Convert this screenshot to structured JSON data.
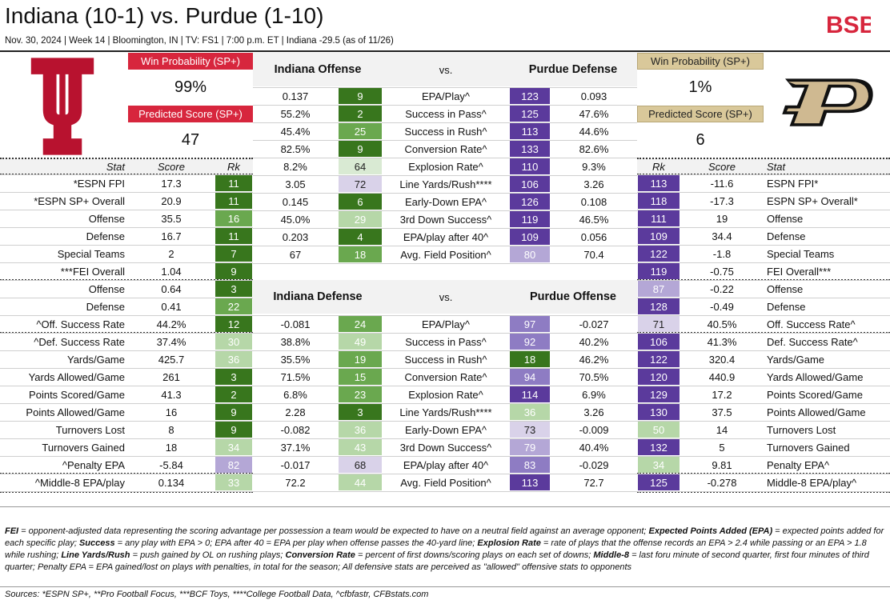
{
  "header": {
    "title": "Indiana (10-1) vs. Purdue (1-10)",
    "subtitle": "Nov. 30, 2024 | Week 14 | Bloomington, IN | TV: FS1 | 7:00 p.m. ET | Indiana -29.5 (as of 11/26)",
    "brand_logo": "BSB"
  },
  "indiana_summary": {
    "win_prob_label": "Win Probability (SP+)",
    "win_prob": "99%",
    "pred_score_label": "Predicted Score (SP+)",
    "pred_score": "47"
  },
  "purdue_summary": {
    "win_prob_label": "Win Probability (SP+)",
    "win_prob": "1%",
    "pred_score_label": "Predicted Score (SP+)",
    "pred_score": "6"
  },
  "headers": {
    "stat": "Stat",
    "score": "Score",
    "rk": "Rk",
    "ind_off": "Indiana Offense",
    "vs1": "vs.",
    "pur_def": "Purdue Defense",
    "ind_def": "Indiana Defense",
    "vs2": "vs.",
    "pur_off": "Purdue Offense"
  },
  "colors": {
    "dark_green": "#38761d",
    "mid_green": "#6aa84f",
    "light_green": "#b6d7a8",
    "pale_green": "#d9ead3",
    "dark_purple": "#5b3a9c",
    "mid_purple": "#8e7cc3",
    "light_purple": "#b4a7d6",
    "pale_purple": "#d9d2e9",
    "ind_red": "#d7263d",
    "pur_gold": "#cfb991"
  },
  "left_rows": [
    {
      "stat": "*ESPN FPI",
      "score": "17.3",
      "rk": "11",
      "tone": "g1"
    },
    {
      "stat": "*ESPN SP+ Overall",
      "score": "20.9",
      "rk": "11",
      "tone": "g1"
    },
    {
      "stat": "Offense",
      "score": "35.5",
      "rk": "16",
      "tone": "g2"
    },
    {
      "stat": "Defense",
      "score": "16.7",
      "rk": "11",
      "tone": "g1"
    },
    {
      "stat": "Special Teams",
      "score": "2",
      "rk": "7",
      "tone": "g1"
    },
    {
      "stat": "***FEI Overall",
      "score": "1.04",
      "rk": "9",
      "tone": "g1"
    },
    {
      "stat": "Offense",
      "score": "0.64",
      "rk": "3",
      "tone": "g1"
    },
    {
      "stat": "Defense",
      "score": "0.41",
      "rk": "22",
      "tone": "g2"
    },
    {
      "stat": "^Off. Success Rate",
      "score": "44.2%",
      "rk": "12",
      "tone": "g1"
    },
    {
      "stat": "^Def. Success Rate",
      "score": "37.4%",
      "rk": "30",
      "tone": "g3"
    },
    {
      "stat": "Yards/Game",
      "score": "425.7",
      "rk": "36",
      "tone": "g3"
    },
    {
      "stat": "Yards Allowed/Game",
      "score": "261",
      "rk": "3",
      "tone": "g1"
    },
    {
      "stat": "Points Scored/Game",
      "score": "41.3",
      "rk": "2",
      "tone": "g1"
    },
    {
      "stat": "Points Allowed/Game",
      "score": "16",
      "rk": "9",
      "tone": "g1"
    },
    {
      "stat": "Turnovers Lost",
      "score": "8",
      "rk": "9",
      "tone": "g1"
    },
    {
      "stat": "Turnovers Gained",
      "score": "18",
      "rk": "34",
      "tone": "g3"
    },
    {
      "stat": "^Penalty EPA",
      "score": "-5.84",
      "rk": "82",
      "tone": "p3"
    },
    {
      "stat": "^Middle-8 EPA/play",
      "score": "0.134",
      "rk": "33",
      "tone": "g3"
    }
  ],
  "right_rows": [
    {
      "rk": "113",
      "score": "-11.6",
      "stat": "ESPN FPI*",
      "tone": "p1"
    },
    {
      "rk": "118",
      "score": "-17.3",
      "stat": "ESPN SP+ Overall*",
      "tone": "p1"
    },
    {
      "rk": "111",
      "score": "19",
      "stat": "Offense",
      "tone": "p1"
    },
    {
      "rk": "109",
      "score": "34.4",
      "stat": "Defense",
      "tone": "p1"
    },
    {
      "rk": "122",
      "score": "-1.8",
      "stat": "Special Teams",
      "tone": "p1"
    },
    {
      "rk": "119",
      "score": "-0.75",
      "stat": "FEI Overall***",
      "tone": "p1"
    },
    {
      "rk": "87",
      "score": "-0.22",
      "stat": "Offense",
      "tone": "p3"
    },
    {
      "rk": "128",
      "score": "-0.49",
      "stat": "Defense",
      "tone": "p1"
    },
    {
      "rk": "71",
      "score": "40.5%",
      "stat": "Off. Success Rate^",
      "tone": "p4"
    },
    {
      "rk": "106",
      "score": "41.3%",
      "stat": "Def. Success Rate^",
      "tone": "p1"
    },
    {
      "rk": "122",
      "score": "320.4",
      "stat": "Yards/Game",
      "tone": "p1"
    },
    {
      "rk": "120",
      "score": "440.9",
      "stat": "Yards Allowed/Game",
      "tone": "p1"
    },
    {
      "rk": "129",
      "score": "17.2",
      "stat": "Points Scored/Game",
      "tone": "p1"
    },
    {
      "rk": "130",
      "score": "37.5",
      "stat": "Points Allowed/Game",
      "tone": "p1"
    },
    {
      "rk": "50",
      "score": "14",
      "stat": "Turnovers Lost",
      "tone": "g3"
    },
    {
      "rk": "132",
      "score": "5",
      "stat": "Turnovers Gained",
      "tone": "p1"
    },
    {
      "rk": "34",
      "score": "9.81",
      "stat": "Penalty EPA^",
      "tone": "g3"
    },
    {
      "rk": "125",
      "score": "-0.278",
      "stat": "Middle-8 EPA/play^",
      "tone": "p1"
    }
  ],
  "matchup1_rows": [
    {
      "a": "0.137",
      "ar": "9",
      "at": "g1",
      "stat": "EPA/Play^",
      "br": "123",
      "bt": "p1",
      "b": "0.093"
    },
    {
      "a": "55.2%",
      "ar": "2",
      "at": "g1",
      "stat": "Success in Pass^",
      "br": "125",
      "bt": "p1",
      "b": "47.6%"
    },
    {
      "a": "45.4%",
      "ar": "25",
      "at": "g2",
      "stat": "Success in Rush^",
      "br": "113",
      "bt": "p1",
      "b": "44.6%"
    },
    {
      "a": "82.5%",
      "ar": "9",
      "at": "g1",
      "stat": "Conversion Rate^",
      "br": "133",
      "bt": "p1",
      "b": "82.6%"
    },
    {
      "a": "8.2%",
      "ar": "64",
      "at": "g4",
      "stat": "Explosion Rate^",
      "br": "110",
      "bt": "p1",
      "b": "9.3%"
    },
    {
      "a": "3.05",
      "ar": "72",
      "at": "p4",
      "stat": "Line Yards/Rush****",
      "br": "106",
      "bt": "p1",
      "b": "3.26"
    },
    {
      "a": "0.145",
      "ar": "6",
      "at": "g1",
      "stat": "Early-Down EPA^",
      "br": "126",
      "bt": "p1",
      "b": "0.108"
    },
    {
      "a": "45.0%",
      "ar": "29",
      "at": "g3",
      "stat": "3rd Down Success^",
      "br": "119",
      "bt": "p1",
      "b": "46.5%"
    },
    {
      "a": "0.203",
      "ar": "4",
      "at": "g1",
      "stat": "EPA/play after 40^",
      "br": "109",
      "bt": "p1",
      "b": "0.056"
    },
    {
      "a": "67",
      "ar": "18",
      "at": "g2",
      "stat": "Avg. Field Position^",
      "br": "80",
      "bt": "p3",
      "b": "70.4"
    }
  ],
  "matchup2_rows": [
    {
      "a": "-0.081",
      "ar": "24",
      "at": "g2",
      "stat": "EPA/Play^",
      "br": "97",
      "bt": "p2",
      "b": "-0.027"
    },
    {
      "a": "38.8%",
      "ar": "49",
      "at": "g3",
      "stat": "Success in Pass^",
      "br": "92",
      "bt": "p2",
      "b": "40.2%"
    },
    {
      "a": "35.5%",
      "ar": "19",
      "at": "g2",
      "stat": "Success in Rush^",
      "br": "18",
      "bt": "g1",
      "b": "46.2%"
    },
    {
      "a": "71.5%",
      "ar": "15",
      "at": "g2",
      "stat": "Conversion Rate^",
      "br": "94",
      "bt": "p2",
      "b": "70.5%"
    },
    {
      "a": "6.8%",
      "ar": "23",
      "at": "g2",
      "stat": "Explosion Rate^",
      "br": "114",
      "bt": "p1",
      "b": "6.9%"
    },
    {
      "a": "2.28",
      "ar": "3",
      "at": "g1",
      "stat": "Line Yards/Rush****",
      "br": "36",
      "bt": "g3",
      "b": "3.26"
    },
    {
      "a": "-0.082",
      "ar": "36",
      "at": "g3",
      "stat": "Early-Down EPA^",
      "br": "73",
      "bt": "p4",
      "b": "-0.009"
    },
    {
      "a": "37.1%",
      "ar": "43",
      "at": "g3",
      "stat": "3rd Down Success^",
      "br": "79",
      "bt": "p3",
      "b": "40.4%"
    },
    {
      "a": "-0.017",
      "ar": "68",
      "at": "p4",
      "stat": "EPA/play after 40^",
      "br": "83",
      "bt": "p2",
      "b": "-0.029"
    },
    {
      "a": "72.2",
      "ar": "44",
      "at": "g3",
      "stat": "Avg. Field Position^",
      "br": "113",
      "bt": "p1",
      "b": "72.7"
    }
  ],
  "footnote_segments": [
    {
      "text": "FEI",
      "b": true
    },
    {
      "text": " = opponent-adjusted data representing the scoring advantage per possession a team would be expected to have on a neutral field against an average opponent; ",
      "b": false
    },
    {
      "text": "Expected Points Added (EPA)",
      "b": true
    },
    {
      "text": " = expected points added for each specific play; ",
      "b": false
    },
    {
      "text": "Success",
      "b": true
    },
    {
      "text": " = any play with EPA > 0; EPA after 40 = EPA per play when offense passes the 40-yard line; ",
      "b": false
    },
    {
      "text": "Explosion Rate",
      "b": true
    },
    {
      "text": " = rate of plays that the offense records an EPA > 2.4 while passing or an EPA > 1.8 while rushing; ",
      "b": false
    },
    {
      "text": "Line Yards/Rush",
      "b": true
    },
    {
      "text": " = push gained by OL on rushing plays; ",
      "b": false
    },
    {
      "text": "Conversion Rate",
      "b": true
    },
    {
      "text": " = percent of first downs/scoring plays on each set of downs; ",
      "b": false
    },
    {
      "text": "Middle-8",
      "b": true
    },
    {
      "text": " = last foru minute of second quarter, first four minutes of third quarter; Penalty EPA = EPA gained/lost on plays with penalties, in total for the season; All defensive stats are perceived as \"allowed\" offensive stats to opponents",
      "b": false
    }
  ],
  "sources": "Sources:   *ESPN SP+, **Pro Football Focus, ***BCF Toys, ****College Football Data, ^cfbfastr, CFBstats.com"
}
